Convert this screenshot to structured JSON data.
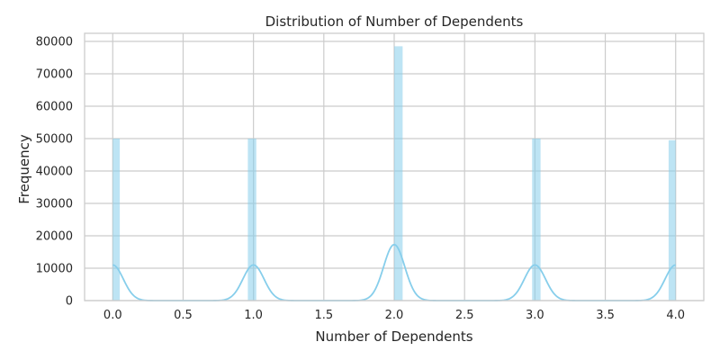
{
  "chart_data": {
    "type": "bar",
    "title": "Distribution of Number of Dependents",
    "xlabel": "Number of Dependents",
    "ylabel": "Frequency",
    "xlim": [
      -0.2,
      4.2
    ],
    "ylim": [
      0,
      82500
    ],
    "x_ticks": [
      "0.0",
      "0.5",
      "1.0",
      "1.5",
      "2.0",
      "2.5",
      "3.0",
      "3.5",
      "4.0"
    ],
    "y_ticks": [
      "0",
      "10000",
      "20000",
      "30000",
      "40000",
      "50000",
      "60000",
      "70000",
      "80000"
    ],
    "bins": [
      {
        "x_start": 0.0,
        "x_end": 0.05,
        "value": 50000
      },
      {
        "x_start": 0.96,
        "x_end": 1.02,
        "value": 50000
      },
      {
        "x_start": 2.0,
        "x_end": 2.06,
        "value": 78500
      },
      {
        "x_start": 2.98,
        "x_end": 3.04,
        "value": 50000
      },
      {
        "x_start": 3.95,
        "x_end": 4.0,
        "value": 49500
      }
    ],
    "kde": {
      "peaks": [
        {
          "x": 0.0,
          "y": 11000
        },
        {
          "x": 1.0,
          "y": 11000
        },
        {
          "x": 2.0,
          "y": 17300
        },
        {
          "x": 3.0,
          "y": 11000
        },
        {
          "x": 4.0,
          "y": 11000
        }
      ]
    },
    "grid": true,
    "colors": {
      "bar": "#87ceeb",
      "kde": "#87ceeb",
      "grid": "#cccccc",
      "text": "#262626"
    }
  }
}
